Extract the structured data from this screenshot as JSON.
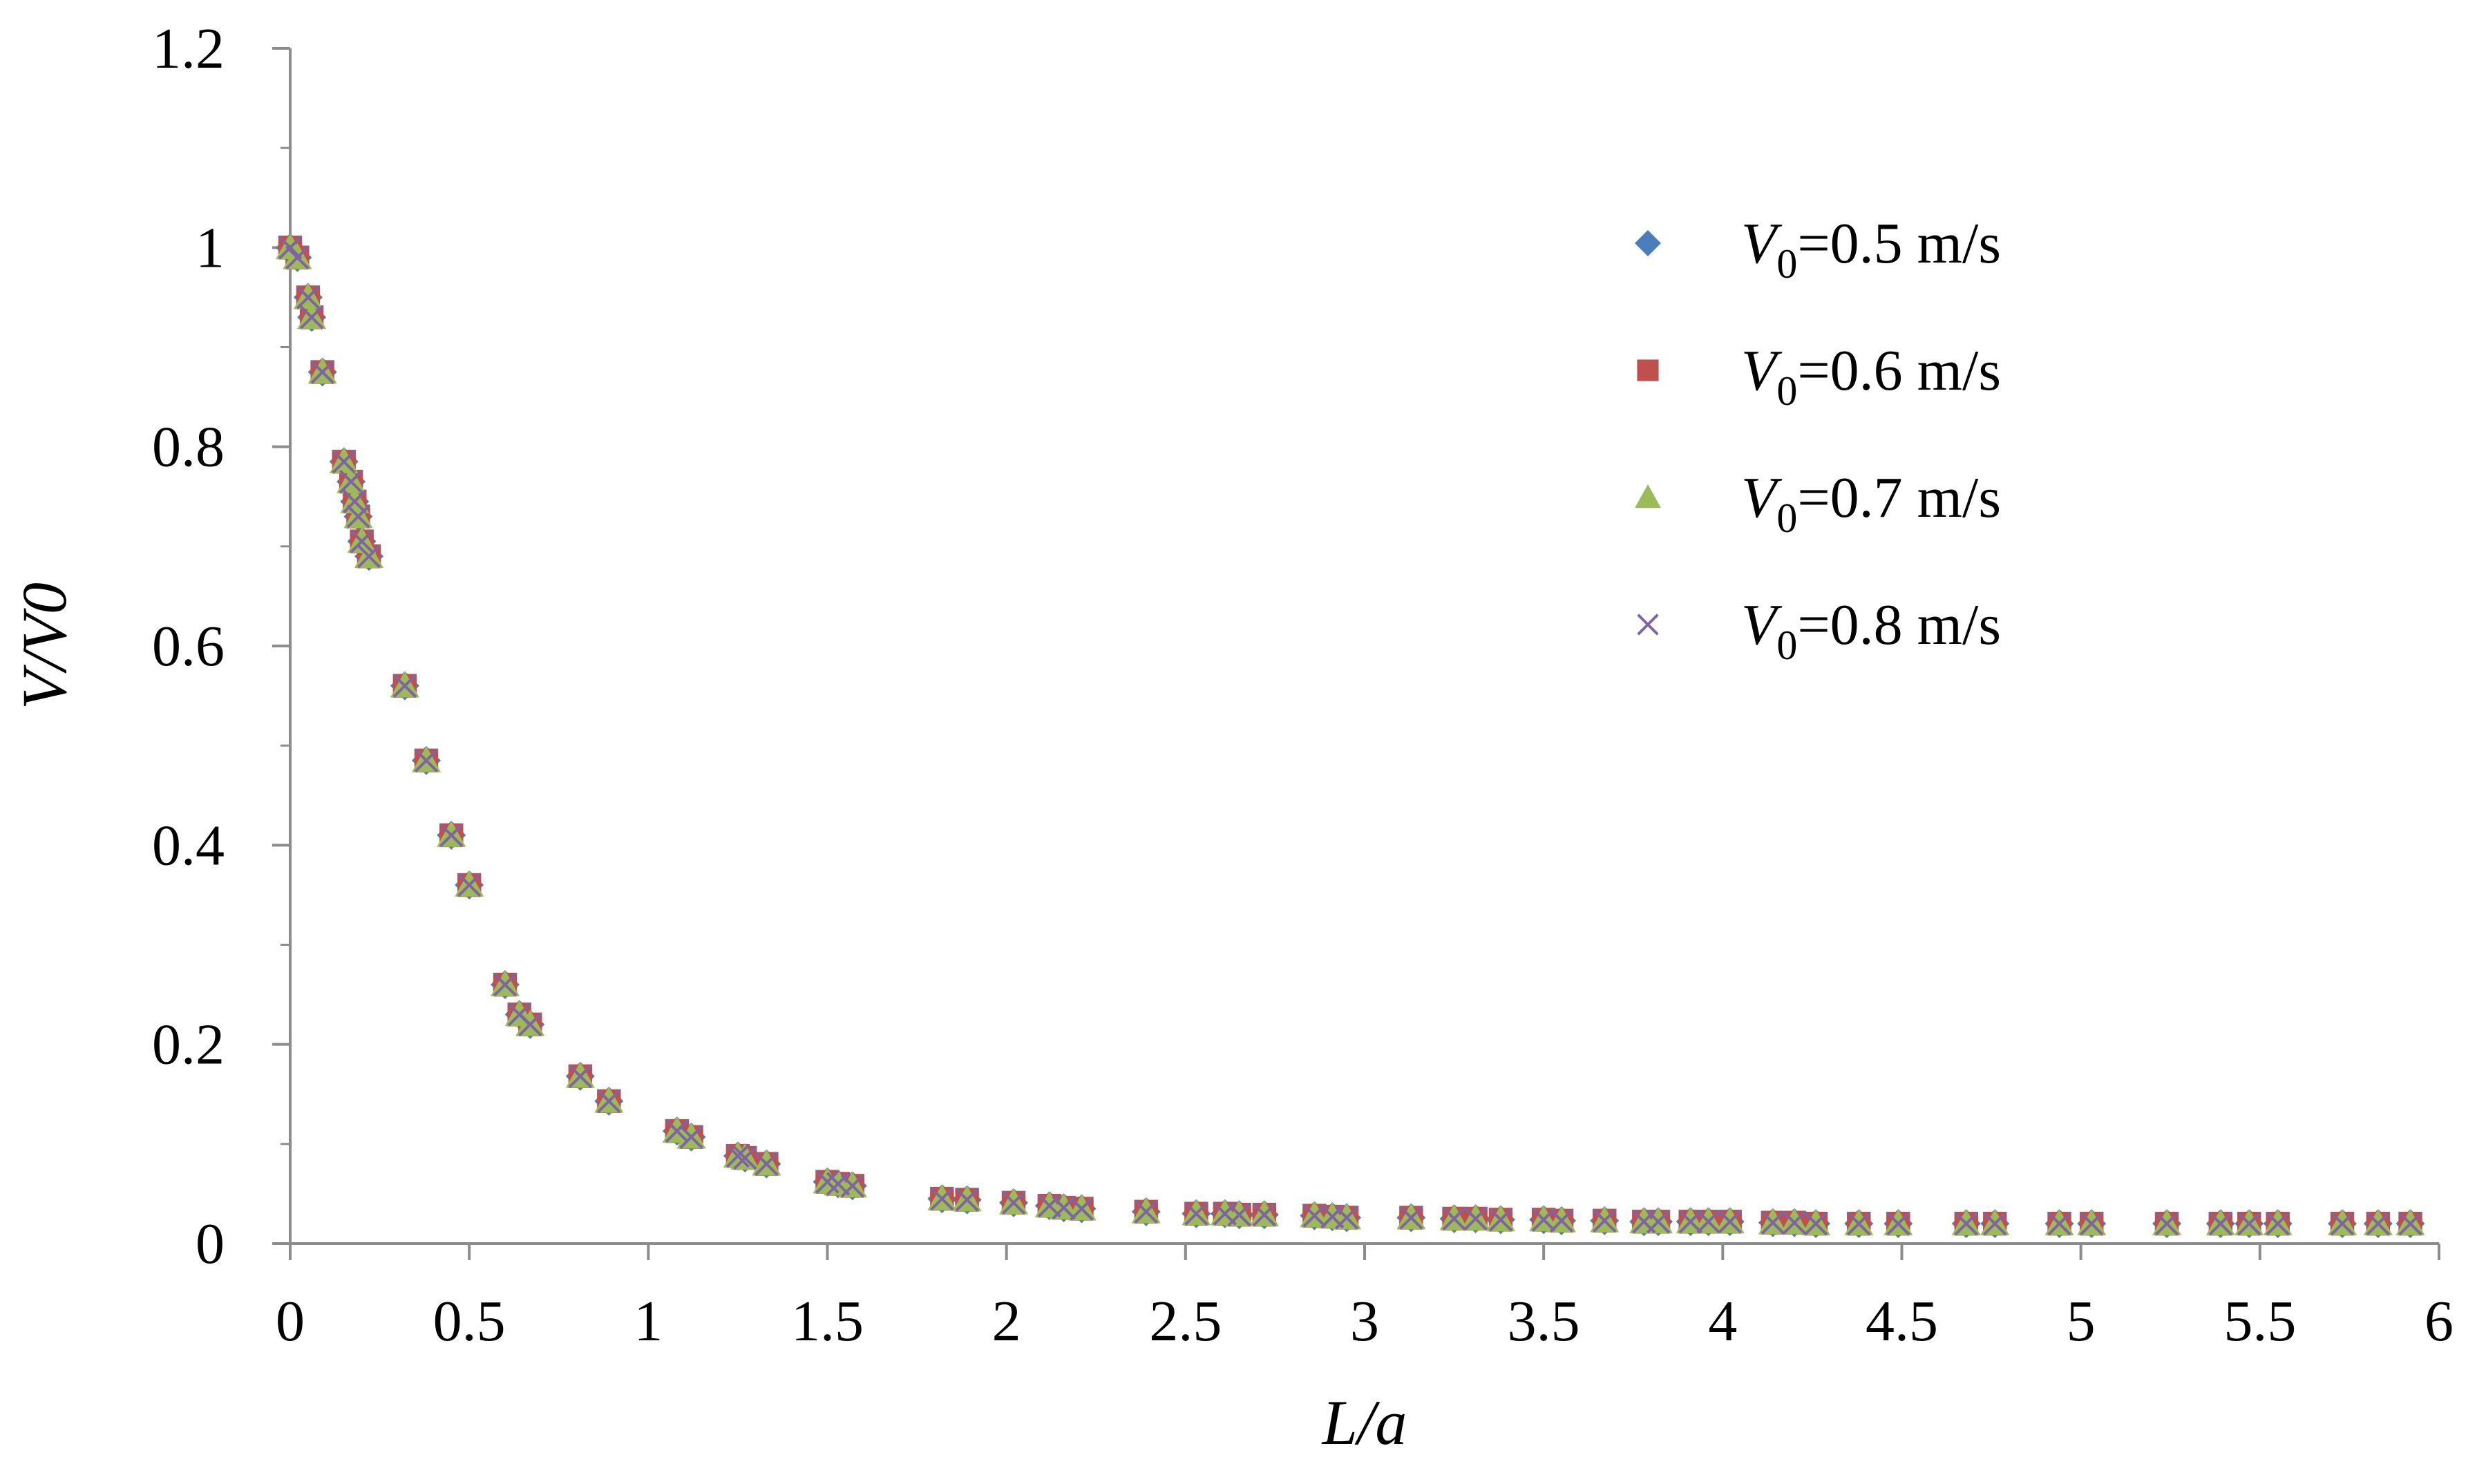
{
  "chart_data": {
    "type": "scatter",
    "xlabel": "L/a",
    "ylabel": "V/V0",
    "xlim": [
      0,
      6
    ],
    "ylim": [
      0,
      1.2
    ],
    "x_ticks": [
      "0",
      "0.5",
      "1",
      "1.5",
      "2",
      "2.5",
      "3",
      "3.5",
      "4",
      "4.5",
      "5",
      "5.5",
      "6"
    ],
    "y_ticks": [
      "0",
      "0.2",
      "0.4",
      "0.6",
      "0.8",
      "1",
      "1.2"
    ],
    "grid": false,
    "legend_position": "top-right",
    "series": [
      {
        "name": "V0=0.5 m/s",
        "label_var": "V",
        "label_sub": "0",
        "label_rest": "=0.5 m/s",
        "marker": "diamond",
        "color": "#4a7ebb"
      },
      {
        "name": "V0=0.6 m/s",
        "label_var": "V",
        "label_sub": "0",
        "label_rest": "=0.6 m/s",
        "marker": "square",
        "color": "#c0504d"
      },
      {
        "name": "V0=0.7 m/s",
        "label_var": "V",
        "label_sub": "0",
        "label_rest": "=0.7 m/s",
        "marker": "triangle",
        "color": "#9bbb59"
      },
      {
        "name": "V0=0.8 m/s",
        "label_var": "V",
        "label_sub": "0",
        "label_rest": "=0.8 m/s",
        "marker": "cross",
        "color": "#8064a2"
      }
    ],
    "points": [
      [
        0.0,
        1.0
      ],
      [
        0.02,
        0.99
      ],
      [
        0.05,
        0.95
      ],
      [
        0.06,
        0.93
      ],
      [
        0.09,
        0.875
      ],
      [
        0.15,
        0.785
      ],
      [
        0.17,
        0.765
      ],
      [
        0.18,
        0.745
      ],
      [
        0.19,
        0.73
      ],
      [
        0.2,
        0.705
      ],
      [
        0.22,
        0.69
      ],
      [
        0.32,
        0.56
      ],
      [
        0.38,
        0.485
      ],
      [
        0.45,
        0.41
      ],
      [
        0.5,
        0.36
      ],
      [
        0.6,
        0.26
      ],
      [
        0.64,
        0.23
      ],
      [
        0.67,
        0.22
      ],
      [
        0.81,
        0.168
      ],
      [
        0.89,
        0.143
      ],
      [
        1.08,
        0.113
      ],
      [
        1.12,
        0.107
      ],
      [
        1.25,
        0.088
      ],
      [
        1.27,
        0.086
      ],
      [
        1.33,
        0.08
      ],
      [
        1.5,
        0.062
      ],
      [
        1.53,
        0.06
      ],
      [
        1.57,
        0.058
      ],
      [
        1.82,
        0.045
      ],
      [
        1.89,
        0.044
      ],
      [
        2.02,
        0.041
      ],
      [
        2.12,
        0.038
      ],
      [
        2.16,
        0.036
      ],
      [
        2.21,
        0.035
      ],
      [
        2.39,
        0.032
      ],
      [
        2.53,
        0.03
      ],
      [
        2.61,
        0.03
      ],
      [
        2.65,
        0.029
      ],
      [
        2.72,
        0.029
      ],
      [
        2.86,
        0.028
      ],
      [
        2.91,
        0.027
      ],
      [
        2.95,
        0.026
      ],
      [
        3.13,
        0.026
      ],
      [
        3.25,
        0.025
      ],
      [
        3.31,
        0.025
      ],
      [
        3.38,
        0.024
      ],
      [
        3.5,
        0.024
      ],
      [
        3.55,
        0.023
      ],
      [
        3.67,
        0.023
      ],
      [
        3.78,
        0.022
      ],
      [
        3.82,
        0.022
      ],
      [
        3.91,
        0.022
      ],
      [
        3.96,
        0.022
      ],
      [
        4.02,
        0.022
      ],
      [
        4.14,
        0.021
      ],
      [
        4.2,
        0.021
      ],
      [
        4.26,
        0.02
      ],
      [
        4.38,
        0.02
      ],
      [
        4.49,
        0.02
      ],
      [
        4.68,
        0.02
      ],
      [
        4.76,
        0.02
      ],
      [
        4.94,
        0.02
      ],
      [
        5.03,
        0.02
      ],
      [
        5.24,
        0.02
      ],
      [
        5.39,
        0.02
      ],
      [
        5.47,
        0.02
      ],
      [
        5.55,
        0.02
      ],
      [
        5.73,
        0.02
      ],
      [
        5.83,
        0.02
      ],
      [
        5.92,
        0.02
      ]
    ]
  }
}
